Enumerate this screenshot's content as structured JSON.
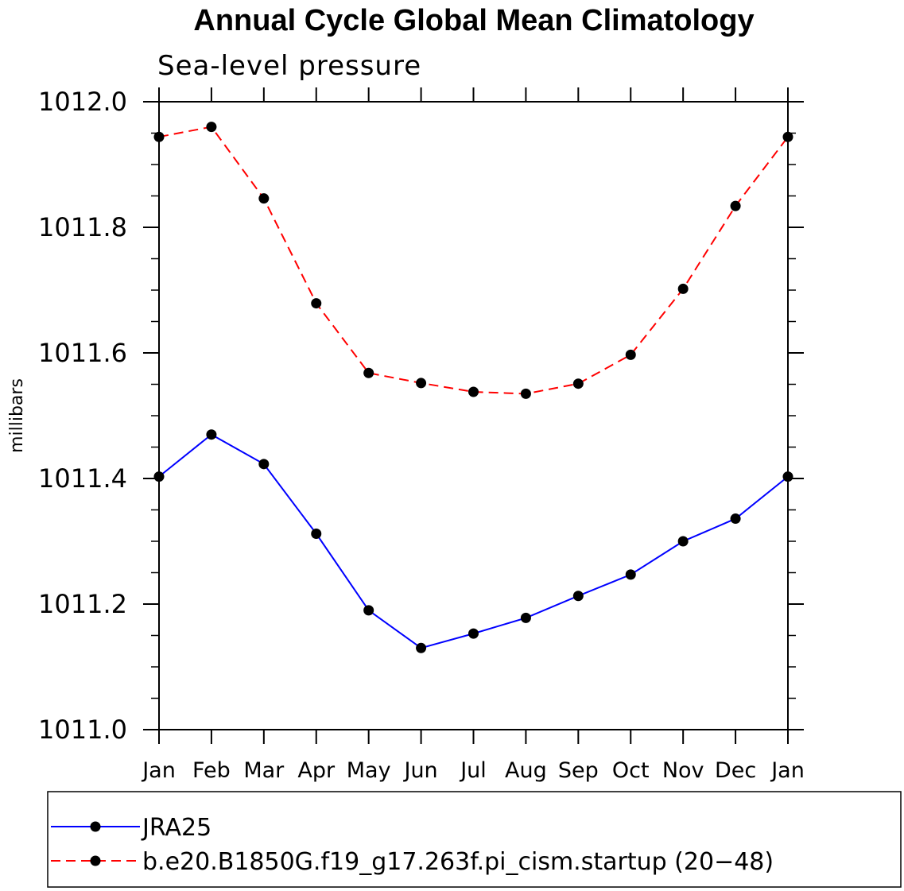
{
  "chart_data": {
    "type": "line",
    "title": "Annual Cycle Global Mean Climatology",
    "subtitle": "Sea-level pressure",
    "ylabel": "millibars",
    "xlabel": "",
    "categories": [
      "Jan",
      "Feb",
      "Mar",
      "Apr",
      "May",
      "Jun",
      "Jul",
      "Aug",
      "Sep",
      "Oct",
      "Nov",
      "Dec",
      "Jan"
    ],
    "ylim": [
      1011.0,
      1012.0
    ],
    "yticks": [
      "1011.0",
      "1011.2",
      "1011.4",
      "1011.6",
      "1011.8",
      "1012.0"
    ],
    "grid": false,
    "legend_position": "bottom",
    "series": [
      {
        "name": "JRA25",
        "color": "#0000ff",
        "dash": "solid",
        "values": [
          1011.403,
          1011.47,
          1011.423,
          1011.312,
          1011.19,
          1011.13,
          1011.153,
          1011.178,
          1011.213,
          1011.247,
          1011.3,
          1011.336,
          1011.403
        ]
      },
      {
        "name": "b.e20.B1850G.f19_g17.263f.pi_cism.startup (20−48)",
        "color": "#ff0000",
        "dash": "dashed",
        "values": [
          1011.944,
          1011.96,
          1011.846,
          1011.679,
          1011.568,
          1011.552,
          1011.538,
          1011.535,
          1011.551,
          1011.597,
          1011.702,
          1011.834,
          1011.944
        ]
      }
    ]
  }
}
